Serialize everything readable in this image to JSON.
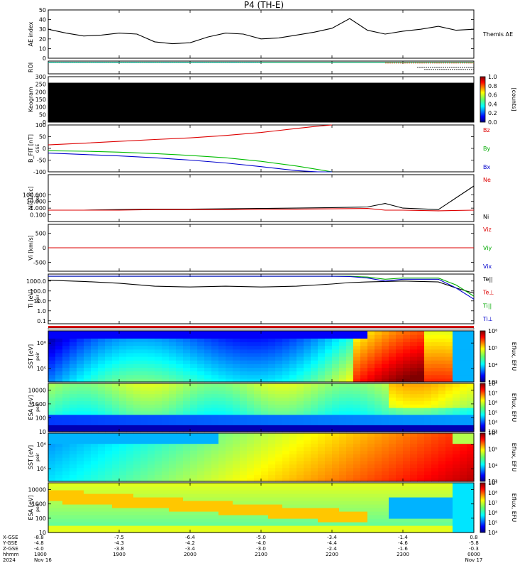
{
  "title": "P4 (TH-E)",
  "footer": {
    "row_labels": [
      "X-GSE",
      "Y-GSE",
      "Z-GSE",
      "hhmm",
      "2024"
    ],
    "columns": [
      {
        "vals": [
          "-8.8",
          "-4.8",
          "-4.0",
          "1800",
          "Nov 16"
        ]
      },
      {
        "vals": [
          "-7.5",
          "-4.3",
          "-3.8",
          "1900",
          ""
        ]
      },
      {
        "vals": [
          "-6.4",
          "-4.2",
          "-3.4",
          "2000",
          ""
        ]
      },
      {
        "vals": [
          "-5.0",
          "-4.0",
          "-3.0",
          "2100",
          ""
        ]
      },
      {
        "vals": [
          "-3.4",
          "-4.4",
          "-2.4",
          "2200",
          ""
        ]
      },
      {
        "vals": [
          "-1.4",
          "-4.6",
          "-1.6",
          "2300",
          ""
        ]
      },
      {
        "vals": [
          "0.8",
          "-5.8",
          "-0.3",
          "0000",
          "Nov 17"
        ]
      }
    ]
  },
  "chart_data": [
    {
      "id": "ae",
      "type": "line",
      "ylabel": "AE index",
      "ylim": [
        0,
        50
      ],
      "yticks": [
        "0",
        "10",
        "20",
        "30",
        "40",
        "50"
      ],
      "right_labels": [
        {
          "text": "Themis AE",
          "color": "#000000"
        }
      ],
      "x_hours": [
        18.0,
        18.25,
        18.5,
        18.75,
        19.0,
        19.25,
        19.5,
        19.75,
        20.0,
        20.25,
        20.5,
        20.75,
        21.0,
        21.25,
        21.5,
        21.75,
        22.0,
        22.25,
        22.5,
        22.75,
        23.0,
        23.25,
        23.5,
        23.75,
        24.0
      ],
      "series": [
        {
          "color": "#000000",
          "values": [
            30,
            26,
            23,
            24,
            26,
            25,
            17,
            15,
            16,
            22,
            26,
            25,
            20,
            21,
            24,
            27,
            31,
            41,
            29,
            25,
            28,
            30,
            33,
            29,
            30
          ]
        }
      ]
    },
    {
      "id": "roi",
      "type": "line",
      "ylabel": "ROI",
      "ylim": [
        0,
        1
      ],
      "yticks": [],
      "segments": [
        {
          "color": "#009b9b",
          "y": 0.9,
          "x": [
            18.0,
            21.0
          ]
        },
        {
          "color": "#e04000",
          "y": 0.85,
          "x": [
            22.75,
            24.0
          ]
        },
        {
          "color": "#333333",
          "y": 0.5,
          "x": [
            23.2,
            24.0
          ]
        },
        {
          "color": "#333333",
          "y": 0.35,
          "x": [
            23.3,
            24.0
          ]
        }
      ],
      "baseline_color": "#00a060"
    },
    {
      "id": "keogram",
      "type": "heatmap",
      "ylabel": "Keogram",
      "ylim": [
        0,
        300
      ],
      "yticks": [
        "0",
        "50",
        "100",
        "150",
        "200",
        "250",
        "300"
      ],
      "fill": "#000000",
      "fill_range": [
        0,
        260
      ],
      "colorbar": {
        "label": "[counts]",
        "ticks": [
          "0.0",
          "0.2",
          "0.4",
          "0.6",
          "0.8",
          "1.0"
        ]
      }
    },
    {
      "id": "bfield",
      "type": "line",
      "ylabel": "B_FIT [nT]",
      "ysublabel": "GSE",
      "ylim": [
        -100,
        100
      ],
      "yticks": [
        "-100",
        "-50",
        "0",
        "50",
        "100"
      ],
      "right_labels": [
        {
          "text": "Bz",
          "color": "#dd0000"
        },
        {
          "text": "By",
          "color": "#00aa00"
        },
        {
          "text": "Bx",
          "color": "#0000cc"
        }
      ],
      "x_hours": [
        18.0,
        18.5,
        19.0,
        19.5,
        20.0,
        20.5,
        21.0,
        21.5,
        21.8,
        22.0
      ],
      "series": [
        {
          "name": "Bz",
          "color": "#dd0000",
          "values": [
            15,
            22,
            30,
            38,
            45,
            55,
            68,
            85,
            95,
            100
          ]
        },
        {
          "name": "By",
          "color": "#00bb00",
          "values": [
            -10,
            -12,
            -16,
            -22,
            -30,
            -40,
            -55,
            -75,
            -90,
            -100
          ]
        },
        {
          "name": "Bx",
          "color": "#0000cc",
          "values": [
            -20,
            -26,
            -32,
            -40,
            -50,
            -62,
            -78,
            -95,
            -100,
            -100
          ]
        }
      ]
    },
    {
      "id": "density",
      "type": "line",
      "ylabel": "Ni [1/cc]",
      "ysublabel": "peir",
      "yscale": "log",
      "ylim": [
        0.01,
        100000
      ],
      "yticks": [
        "0.100",
        "1.000",
        "10.000",
        "100.000"
      ],
      "right_labels": [
        {
          "text": "Ne",
          "color": "#dd0000"
        },
        {
          "text": "Ni",
          "color": "#000000"
        }
      ],
      "x_hours": [
        18.0,
        18.5,
        19.0,
        19.5,
        20.0,
        20.5,
        21.0,
        21.5,
        22.0,
        22.5,
        22.75,
        23.0,
        23.5,
        24.0
      ],
      "series": [
        {
          "name": "Ni",
          "color": "#000000",
          "values": [
            0.5,
            0.5,
            0.6,
            0.7,
            0.7,
            0.8,
            0.9,
            1.0,
            1.2,
            1.5,
            5.0,
            1.0,
            0.6,
            2000
          ]
        },
        {
          "name": "Ne",
          "color": "#dd0000",
          "values": [
            0.5,
            0.5,
            0.5,
            0.6,
            0.6,
            0.6,
            0.7,
            0.7,
            0.8,
            0.9,
            0.5,
            0.5,
            0.4,
            0.5
          ]
        }
      ]
    },
    {
      "id": "velocity",
      "type": "line",
      "ylabel": "Vi [km/s]",
      "ylim": [
        -800,
        800
      ],
      "yticks": [
        "-500",
        "0",
        "500"
      ],
      "right_labels": [
        {
          "text": "Viz",
          "color": "#dd0000"
        },
        {
          "text": "Viy",
          "color": "#00aa00"
        },
        {
          "text": "Vix",
          "color": "#0000cc"
        }
      ],
      "x_hours": [
        18.0,
        24.0
      ],
      "series": [
        {
          "name": "Viz",
          "color": "#dd0000",
          "values": [
            0,
            0
          ]
        }
      ]
    },
    {
      "id": "temperature",
      "type": "line",
      "ylabel": "Ti [eV]",
      "ysublabel": "peir",
      "yscale": "log",
      "ylim": [
        0.05,
        5000
      ],
      "yticks": [
        "0.1",
        "1.0",
        "10.0",
        "100.0",
        "1000.0"
      ],
      "right_labels": [
        {
          "text": "Te||",
          "color": "#000000"
        },
        {
          "text": "Te⊥",
          "color": "#dd0000"
        },
        {
          "text": "Ti||",
          "color": "#00aa00"
        },
        {
          "text": "Ti⊥",
          "color": "#0000cc"
        }
      ],
      "x_hours": [
        18.0,
        18.5,
        19.0,
        19.5,
        20.0,
        20.5,
        21.0,
        21.5,
        22.0,
        22.25,
        22.5,
        22.75,
        23.0,
        23.5,
        23.75,
        24.0
      ],
      "series": [
        {
          "name": "Te||",
          "color": "#000000",
          "values": [
            1200,
            900,
            600,
            300,
            250,
            300,
            250,
            300,
            500,
            700,
            800,
            900,
            1000,
            800,
            200,
            60
          ]
        },
        {
          "name": "Ti||",
          "color": "#00aa00",
          "values": [
            3000,
            3000,
            3000,
            3000,
            3000,
            3000,
            3000,
            3000,
            3000,
            3000,
            2500,
            1500,
            2000,
            2000,
            400,
            30
          ]
        },
        {
          "name": "Ti⊥",
          "color": "#0000cc",
          "values": [
            3000,
            3000,
            3000,
            3000,
            3000,
            3000,
            3000,
            3000,
            3000,
            2800,
            2000,
            1000,
            1500,
            1500,
            200,
            15
          ]
        }
      ]
    },
    {
      "id": "sst_e",
      "type": "heatmap",
      "ylabel": "SST [eV]",
      "ysublabel": "peir",
      "yscale": "log",
      "ylim": [
        30000,
        3000000
      ],
      "yticks": [
        "10⁵",
        "10⁶"
      ],
      "map": "sst_e",
      "colorbar": {
        "label": "Eflux, EFU",
        "ticks": [
          "10³",
          "10⁴",
          "10⁵",
          "10⁶"
        ]
      }
    },
    {
      "id": "esa_i",
      "type": "heatmap",
      "ylabel": "ESA [eV]",
      "ysublabel": "peir",
      "yscale": "log",
      "ylim": [
        10,
        30000
      ],
      "yticks": [
        "10",
        "100",
        "1000",
        "10000"
      ],
      "map": "esa_i",
      "colorbar": {
        "label": "Eflux, EFU",
        "ticks": [
          "10³",
          "10⁴",
          "10⁵",
          "10⁶",
          "10⁷",
          "10⁸"
        ]
      }
    },
    {
      "id": "sst_i",
      "type": "heatmap",
      "ylabel": "SST [eV]",
      "ysublabel": "peir",
      "yscale": "log",
      "ylim": [
        30000,
        3000000
      ],
      "yticks": [
        "10⁵",
        "10⁶"
      ],
      "map": "sst_i",
      "colorbar": {
        "label": "Eflux, EFU",
        "ticks": [
          "10³",
          "10⁴",
          "10⁵",
          "10⁶"
        ]
      }
    },
    {
      "id": "esa_e",
      "type": "heatmap",
      "ylabel": "ESA [eV]",
      "ysublabel": "peir",
      "yscale": "log",
      "ylim": [
        10,
        30000
      ],
      "yticks": [
        "10",
        "100",
        "1000",
        "10000"
      ],
      "map": "esa_e",
      "colorbar": {
        "label": "Eflux, EFU",
        "ticks": [
          "10⁴",
          "10⁵",
          "10⁶",
          "10⁷",
          "10⁸",
          "10⁹"
        ]
      }
    }
  ]
}
